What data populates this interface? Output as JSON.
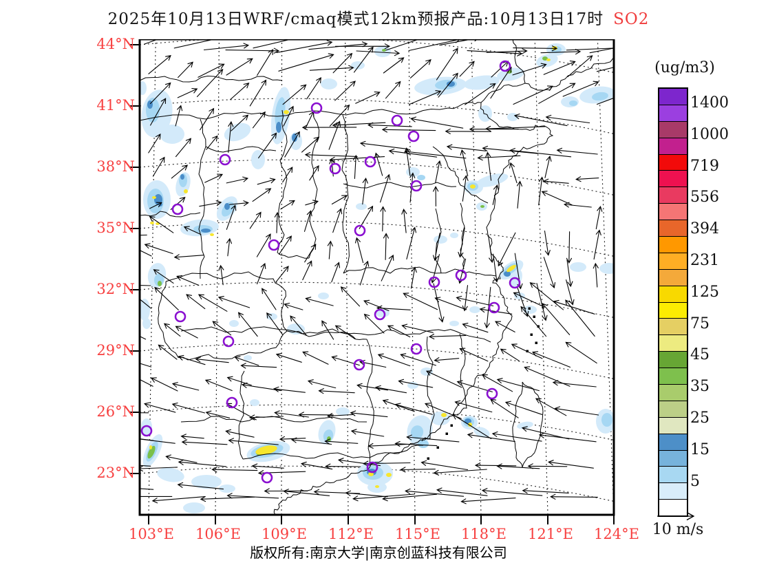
{
  "title": {
    "main": "2025年10月13日WRF/cmaq模式12km预报产品:10月13日17时",
    "pollutant": "SO2"
  },
  "map": {
    "lat_labels": [
      "44°N",
      "41°N",
      "38°N",
      "35°N",
      "32°N",
      "29°N",
      "26°N",
      "23°N"
    ],
    "lon_labels": [
      "103°E",
      "106°E",
      "109°E",
      "112°E",
      "115°E",
      "118°E",
      "121°E",
      "124°E"
    ]
  },
  "legend": {
    "unit": "(ug/m3)",
    "tick_labels": [
      "1400",
      "1000",
      "719",
      "556",
      "394",
      "231",
      "125",
      "75",
      "45",
      "35",
      "25",
      "15",
      "5"
    ],
    "colors": [
      "#7d26cd",
      "#9b3fe0",
      "#a83a68",
      "#c2208e",
      "#f20a0a",
      "#ee1150",
      "#e93a60",
      "#f57575",
      "#e8662a",
      "#ff9800",
      "#ffae24",
      "#f4a93a",
      "#f8d900",
      "#fcec02",
      "#e5cf63",
      "#edeb80",
      "#67a634",
      "#7ec04d",
      "#a9cc6c",
      "#bccf87",
      "#e0e7c0",
      "#4d8fc8",
      "#77b3dc",
      "#a8d8f2",
      "#d9edfa",
      "#ffffff"
    ]
  },
  "wind_legend": {
    "label": "10 m/s"
  },
  "footer": {
    "copyright": "版权所有:南京大学|南京创蓝科技有限公司"
  },
  "theme": {
    "axis_label_color": "#f74040",
    "title_highlight_color": "#f03c3c",
    "marker_color": "#8a10d0",
    "frame_color": "#000000",
    "shade_light": "#d3eafa",
    "shade_medium": "#a6d7f3",
    "shade_dark": "#4a8dc8",
    "shade_green": "#7ac04a",
    "shade_yellow": "#f7e62e"
  }
}
